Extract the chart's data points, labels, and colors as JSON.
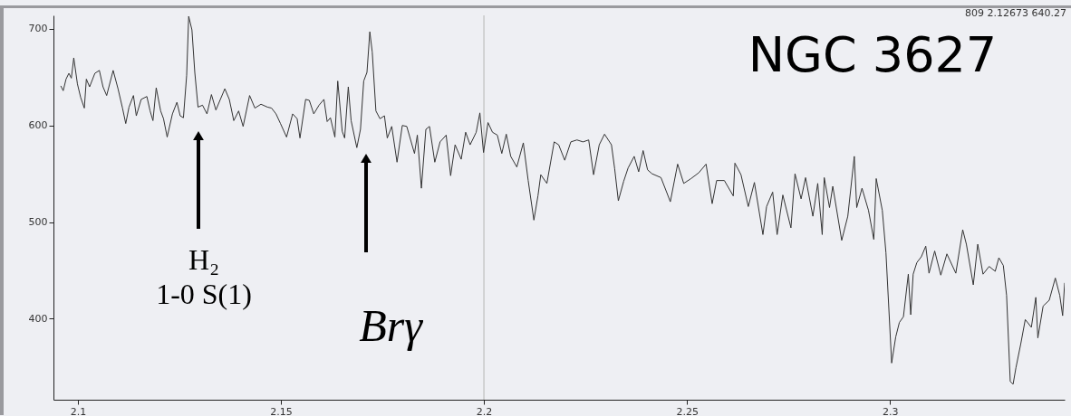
{
  "chart_data": {
    "type": "line",
    "title": "NGC 3627",
    "annotations": [
      "809 2.12673 640.27",
      "H₂\n1-0 S(1)",
      "Brγ"
    ],
    "xlim": [
      2.094,
      2.343
    ],
    "ylim": [
      316,
      714
    ],
    "xticks": [
      2.1,
      2.15,
      2.2,
      2.25,
      2.3
    ],
    "yticks": [
      400,
      500,
      600,
      700
    ],
    "grid": false,
    "ref_lines": [
      {
        "axis": "x",
        "value": 2.2,
        "color": "#c8c8c8"
      }
    ],
    "series": [
      {
        "color": "#333333",
        "x": [
          2.0958,
          2.0964,
          2.0971,
          2.0978,
          2.0984,
          2.099,
          2.0999,
          2.1007,
          2.1016,
          2.1021,
          2.1029,
          2.1042,
          2.1053,
          2.1062,
          2.1071,
          2.1087,
          2.1099,
          2.111,
          2.1118,
          2.1126,
          2.1137,
          2.1144,
          2.1156,
          2.117,
          2.1178,
          2.1185,
          2.1193,
          2.1204,
          2.1211,
          2.122,
          2.1233,
          2.1244,
          2.1252,
          2.126,
          2.1268,
          2.1273,
          2.1281,
          2.1288,
          2.1296,
          2.1307,
          2.1318,
          2.1329,
          2.134,
          2.1362,
          2.1373,
          2.1384,
          2.1396,
          2.1407,
          2.1423,
          2.1436,
          2.1451,
          2.1467,
          2.1477,
          2.1488,
          2.1499,
          2.1514,
          2.1529,
          2.154,
          2.1547,
          2.1561,
          2.157,
          2.1581,
          2.1594,
          2.1606,
          2.1614,
          2.1622,
          2.1633,
          2.164,
          2.1651,
          2.1657,
          2.1666,
          2.1673,
          2.1687,
          2.1696,
          2.1704,
          2.1712,
          2.1719,
          2.1725,
          2.1734,
          2.1744,
          2.1755,
          2.1762,
          2.1773,
          2.1786,
          2.1799,
          2.181,
          2.1829,
          2.1836,
          2.1846,
          2.1857,
          2.1866,
          2.1879,
          2.1892,
          2.1907,
          2.1918,
          2.1929,
          2.1944,
          2.1955,
          2.1966,
          2.1981,
          2.199,
          2.1999,
          2.201,
          2.2021,
          2.2033,
          2.2044,
          2.2055,
          2.2066,
          2.2081,
          2.2097,
          2.2109,
          2.2123,
          2.2133,
          2.214,
          2.2155,
          2.2173,
          2.2184,
          2.2199,
          2.2214,
          2.2229,
          2.2244,
          2.2258,
          2.227,
          2.2284,
          2.2297,
          2.2314,
          2.2322,
          2.2331,
          2.2344,
          2.2355,
          2.237,
          2.2381,
          2.2392,
          2.2403,
          2.2414,
          2.2436,
          2.2459,
          2.2477,
          2.2492,
          2.251,
          2.2529,
          2.2547,
          2.2562,
          2.2573,
          2.2592,
          2.2614,
          2.2618,
          2.2633,
          2.2651,
          2.2666,
          2.2687,
          2.2696,
          2.2711,
          2.2722,
          2.2736,
          2.2756,
          2.2766,
          2.2781,
          2.2792,
          2.281,
          2.2822,
          2.2833,
          2.2838,
          2.2851,
          2.2859,
          2.2881,
          2.2896,
          2.2912,
          2.2918,
          2.2931,
          2.2947,
          2.296,
          2.2966,
          2.2981,
          2.299,
          2.3004,
          2.3014,
          2.3023,
          2.3033,
          2.3045,
          2.3051,
          2.3057,
          2.3066,
          2.3077,
          2.3088,
          2.3096,
          2.311,
          2.3125,
          2.314,
          2.3162,
          2.3179,
          2.3188,
          2.3205,
          2.3216,
          2.3229,
          2.3244,
          2.3259,
          2.3268,
          2.3279,
          2.3287,
          2.3296,
          2.3303,
          2.331,
          2.3322,
          2.3333,
          2.3348,
          2.3359,
          2.3364,
          2.3377,
          2.3392,
          2.3407,
          2.3418,
          2.3425,
          2.343
        ],
        "values": [
          641,
          636,
          648,
          654,
          649,
          670,
          643,
          629,
          618,
          648,
          640,
          654,
          657,
          640,
          631,
          657,
          638,
          618,
          602,
          619,
          631,
          610,
          627,
          630,
          615,
          605,
          639,
          615,
          607,
          588,
          612,
          624,
          610,
          608,
          652,
          713,
          699,
          655,
          619,
          621,
          612,
          632,
          616,
          638,
          627,
          605,
          615,
          599,
          631,
          618,
          622,
          619,
          618,
          612,
          602,
          588,
          612,
          607,
          587,
          627,
          626,
          612,
          621,
          627,
          604,
          608,
          588,
          646,
          594,
          587,
          640,
          605,
          577,
          596,
          646,
          655,
          697,
          676,
          615,
          607,
          610,
          587,
          599,
          562,
          600,
          599,
          571,
          590,
          535,
          596,
          599,
          562,
          583,
          590,
          548,
          580,
          565,
          593,
          580,
          593,
          613,
          572,
          603,
          593,
          590,
          571,
          591,
          568,
          557,
          582,
          543,
          502,
          527,
          549,
          540,
          583,
          580,
          564,
          583,
          585,
          583,
          585,
          549,
          580,
          591,
          580,
          555,
          522,
          542,
          556,
          568,
          552,
          574,
          554,
          550,
          546,
          521,
          560,
          540,
          545,
          551,
          560,
          519,
          543,
          543,
          527,
          561,
          549,
          516,
          541,
          487,
          516,
          531,
          487,
          528,
          494,
          550,
          524,
          546,
          506,
          540,
          487,
          546,
          515,
          537,
          481,
          506,
          568,
          515,
          535,
          512,
          482,
          545,
          512,
          468,
          354,
          381,
          396,
          402,
          446,
          404,
          446,
          458,
          464,
          475,
          447,
          470,
          445,
          467,
          447,
          492,
          477,
          435,
          477,
          446,
          454,
          449,
          463,
          455,
          424,
          335,
          332,
          349,
          374,
          399,
          391,
          422,
          380,
          413,
          419,
          442,
          424,
          403,
          437
        ]
      }
    ]
  }
}
